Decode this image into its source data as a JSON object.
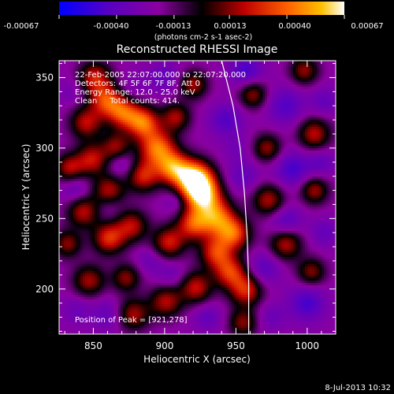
{
  "chart_data": {
    "type": "heatmap",
    "title": "Reconstructed RHESSI Image",
    "xlabel": "Heliocentric X (arcsec)",
    "ylabel": "Heliocentric Y (arcsec)",
    "xlim": [
      826,
      1020
    ],
    "ylim": [
      168,
      362
    ],
    "xticks": [
      850,
      900,
      950,
      1000
    ],
    "yticks": [
      200,
      250,
      300,
      350
    ],
    "colorbar": {
      "min": -0.00067,
      "max": 0.00067,
      "tick_labels": [
        "-0.00067",
        "-0.00040",
        "-0.00013",
        "0.00013",
        "0.00040",
        "0.00067"
      ],
      "unit_label": "(photons cm-2 s-1 asec-2)",
      "colors": [
        "#0000ff",
        "#5a00c0",
        "#8a00a0",
        "#000000",
        "#c00000",
        "#ff6000",
        "#ffc000",
        "#ffffff"
      ]
    },
    "annotations": [
      "22-Feb-2005 22:07:00.000 to 22:07:20.000",
      "Detectors: 4F 5F 6F 7F 8F, Att 0",
      "Energy Range: 12.0 - 25.0 keV",
      "Clean     Total counts: 414."
    ],
    "peak_label": "Position of Peak = [921,278]",
    "peak": {
      "x": 921,
      "y": 278
    },
    "blobs": [
      {
        "x": 921,
        "y": 278,
        "v": 1.0,
        "s": 9
      },
      {
        "x": 927,
        "y": 266,
        "v": 0.7,
        "s": 9
      },
      {
        "x": 906,
        "y": 286,
        "v": 0.55,
        "s": 8
      },
      {
        "x": 895,
        "y": 300,
        "v": 0.6,
        "s": 9
      },
      {
        "x": 885,
        "y": 318,
        "v": 0.55,
        "s": 8
      },
      {
        "x": 871,
        "y": 325,
        "v": 0.45,
        "s": 8
      },
      {
        "x": 859,
        "y": 334,
        "v": 0.42,
        "s": 8
      },
      {
        "x": 851,
        "y": 350,
        "v": 0.35,
        "s": 8
      },
      {
        "x": 845,
        "y": 318,
        "v": 0.3,
        "s": 8
      },
      {
        "x": 866,
        "y": 301,
        "v": 0.22,
        "s": 7
      },
      {
        "x": 849,
        "y": 292,
        "v": 0.32,
        "s": 8
      },
      {
        "x": 833,
        "y": 286,
        "v": 0.25,
        "s": 7
      },
      {
        "x": 885,
        "y": 280,
        "v": 0.36,
        "s": 8
      },
      {
        "x": 861,
        "y": 270,
        "v": 0.28,
        "s": 8
      },
      {
        "x": 843,
        "y": 255,
        "v": 0.3,
        "s": 8
      },
      {
        "x": 877,
        "y": 245,
        "v": 0.28,
        "s": 8
      },
      {
        "x": 861,
        "y": 236,
        "v": 0.42,
        "s": 8
      },
      {
        "x": 903,
        "y": 233,
        "v": 0.35,
        "s": 8
      },
      {
        "x": 920,
        "y": 246,
        "v": 0.42,
        "s": 8
      },
      {
        "x": 937,
        "y": 250,
        "v": 0.55,
        "s": 9
      },
      {
        "x": 949,
        "y": 239,
        "v": 0.45,
        "s": 8
      },
      {
        "x": 936,
        "y": 226,
        "v": 0.4,
        "s": 8
      },
      {
        "x": 946,
        "y": 212,
        "v": 0.4,
        "s": 8
      },
      {
        "x": 957,
        "y": 199,
        "v": 0.38,
        "s": 8
      },
      {
        "x": 922,
        "y": 201,
        "v": 0.32,
        "s": 8
      },
      {
        "x": 901,
        "y": 191,
        "v": 0.28,
        "s": 8
      },
      {
        "x": 873,
        "y": 208,
        "v": 0.2,
        "s": 7
      },
      {
        "x": 847,
        "y": 206,
        "v": 0.25,
        "s": 8
      },
      {
        "x": 832,
        "y": 232,
        "v": 0.2,
        "s": 7
      },
      {
        "x": 878,
        "y": 182,
        "v": 0.26,
        "s": 8
      },
      {
        "x": 955,
        "y": 176,
        "v": 0.2,
        "s": 7
      },
      {
        "x": 985,
        "y": 232,
        "v": 0.3,
        "s": 8
      },
      {
        "x": 1003,
        "y": 212,
        "v": 0.2,
        "s": 7
      },
      {
        "x": 973,
        "y": 263,
        "v": 0.28,
        "s": 8
      },
      {
        "x": 1005,
        "y": 270,
        "v": 0.25,
        "s": 7
      },
      {
        "x": 972,
        "y": 300,
        "v": 0.22,
        "s": 7
      },
      {
        "x": 1005,
        "y": 310,
        "v": 0.3,
        "s": 8
      },
      {
        "x": 998,
        "y": 355,
        "v": 0.22,
        "s": 7
      },
      {
        "x": 962,
        "y": 338,
        "v": 0.22,
        "s": 7
      },
      {
        "x": 920,
        "y": 345,
        "v": 0.25,
        "s": 7
      },
      {
        "x": 908,
        "y": 322,
        "v": 0.25,
        "s": 7
      },
      {
        "x": 943,
        "y": 320,
        "v": -0.45,
        "s": 8
      },
      {
        "x": 957,
        "y": 355,
        "v": -0.5,
        "s": 8
      },
      {
        "x": 900,
        "y": 350,
        "v": -0.35,
        "s": 8
      },
      {
        "x": 985,
        "y": 330,
        "v": -0.45,
        "s": 9
      },
      {
        "x": 1012,
        "y": 333,
        "v": -0.35,
        "s": 7
      },
      {
        "x": 990,
        "y": 285,
        "v": -0.5,
        "s": 9
      },
      {
        "x": 1010,
        "y": 290,
        "v": -0.35,
        "s": 7
      },
      {
        "x": 955,
        "y": 280,
        "v": -0.35,
        "s": 8
      },
      {
        "x": 985,
        "y": 248,
        "v": -0.45,
        "s": 8
      },
      {
        "x": 1012,
        "y": 240,
        "v": -0.35,
        "s": 7
      },
      {
        "x": 970,
        "y": 215,
        "v": -0.4,
        "s": 8
      },
      {
        "x": 1000,
        "y": 190,
        "v": -0.5,
        "s": 9
      },
      {
        "x": 975,
        "y": 180,
        "v": -0.3,
        "s": 7
      },
      {
        "x": 930,
        "y": 180,
        "v": -0.35,
        "s": 7
      },
      {
        "x": 905,
        "y": 210,
        "v": -0.3,
        "s": 7
      },
      {
        "x": 890,
        "y": 220,
        "v": -0.3,
        "s": 7
      },
      {
        "x": 860,
        "y": 182,
        "v": -0.35,
        "s": 8
      },
      {
        "x": 838,
        "y": 185,
        "v": -0.3,
        "s": 7
      },
      {
        "x": 838,
        "y": 270,
        "v": -0.35,
        "s": 7
      },
      {
        "x": 870,
        "y": 288,
        "v": -0.35,
        "s": 7
      },
      {
        "x": 860,
        "y": 258,
        "v": -0.25,
        "s": 7
      },
      {
        "x": 908,
        "y": 262,
        "v": -0.3,
        "s": 6
      },
      {
        "x": 878,
        "y": 342,
        "v": -0.25,
        "s": 7
      },
      {
        "x": 835,
        "y": 340,
        "v": -0.25,
        "s": 7
      },
      {
        "x": 950,
        "y": 300,
        "v": -0.25,
        "s": 7
      }
    ],
    "limb": [
      [
        940,
        362
      ],
      [
        948,
        330
      ],
      [
        953,
        300
      ],
      [
        956,
        268
      ],
      [
        958,
        236
      ],
      [
        959,
        205
      ],
      [
        959,
        168
      ]
    ]
  },
  "footer": {
    "timestamp": "8-Jul-2013 10:32"
  }
}
